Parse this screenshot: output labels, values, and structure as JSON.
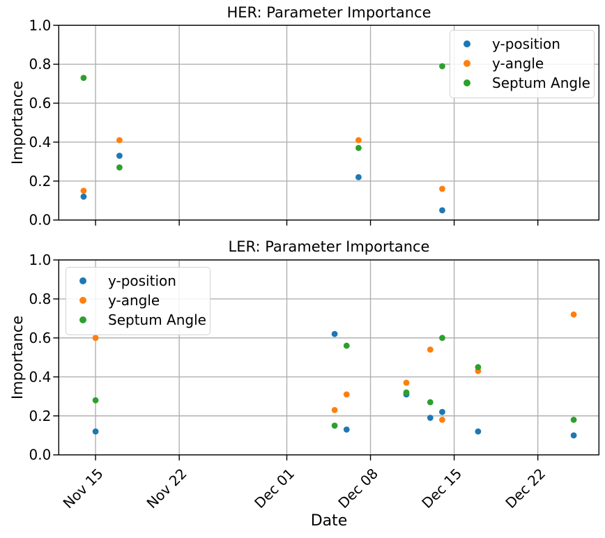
{
  "figure": {
    "xlabel": "Date",
    "background": "#ffffff",
    "text_color": "#000000",
    "grid_color": "#b0b0b0",
    "axis_color": "#000000"
  },
  "legend": {
    "entries": [
      {
        "label": "y-position",
        "color": "#1f77b4",
        "marker": "circle-icon"
      },
      {
        "label": "y-angle",
        "color": "#ff7f0e",
        "marker": "circle-icon"
      },
      {
        "label": "Septum Angle",
        "color": "#2ca02c",
        "marker": "circle-icon"
      }
    ]
  },
  "chart_data": [
    {
      "id": "her",
      "type": "scatter",
      "title": "HER: Parameter Importance",
      "ylabel": "Importance",
      "xlabel": "",
      "ylim": [
        0.0,
        1.0
      ],
      "grid": true,
      "legend_position": "top-right",
      "yticks": [
        {
          "value": 0.0,
          "label": "0.0"
        },
        {
          "value": 0.2,
          "label": "0.2"
        },
        {
          "value": 0.4,
          "label": "0.4"
        },
        {
          "value": 0.6,
          "label": "0.6"
        },
        {
          "value": 0.8,
          "label": "0.8"
        },
        {
          "value": 1.0,
          "label": "1.0"
        }
      ],
      "x_axis": {
        "show_tick_labels": false,
        "domain_days": [
          -3.1,
          42.1
        ],
        "ticks": [
          {
            "day": 0,
            "label": "Nov 15"
          },
          {
            "day": 7,
            "label": "Nov 22"
          },
          {
            "day": 16,
            "label": "Dec 01"
          },
          {
            "day": 23,
            "label": "Dec 08"
          },
          {
            "day": 30,
            "label": "Dec 15"
          },
          {
            "day": 37,
            "label": "Dec 22"
          }
        ]
      },
      "series": [
        {
          "name": "y-position",
          "color": "#1f77b4",
          "points": [
            {
              "date": "Nov 14",
              "day": -1,
              "value": 0.12
            },
            {
              "date": "Nov 17",
              "day": 2,
              "value": 0.33
            },
            {
              "date": "Dec 07",
              "day": 22,
              "value": 0.22
            },
            {
              "date": "Dec 14",
              "day": 29,
              "value": 0.05
            }
          ]
        },
        {
          "name": "y-angle",
          "color": "#ff7f0e",
          "points": [
            {
              "date": "Nov 14",
              "day": -1,
              "value": 0.15
            },
            {
              "date": "Nov 17",
              "day": 2,
              "value": 0.41
            },
            {
              "date": "Dec 07",
              "day": 22,
              "value": 0.41
            },
            {
              "date": "Dec 14",
              "day": 29,
              "value": 0.16
            }
          ]
        },
        {
          "name": "Septum Angle",
          "color": "#2ca02c",
          "points": [
            {
              "date": "Nov 14",
              "day": -1,
              "value": 0.73
            },
            {
              "date": "Nov 17",
              "day": 2,
              "value": 0.27
            },
            {
              "date": "Dec 07",
              "day": 22,
              "value": 0.37
            },
            {
              "date": "Dec 14",
              "day": 29,
              "value": 0.79
            }
          ]
        }
      ]
    },
    {
      "id": "ler",
      "type": "scatter",
      "title": "LER: Parameter Importance",
      "ylabel": "Importance",
      "xlabel": "Date",
      "ylim": [
        0.0,
        1.0
      ],
      "grid": true,
      "legend_position": "top-left",
      "yticks": [
        {
          "value": 0.0,
          "label": "0.0"
        },
        {
          "value": 0.2,
          "label": "0.2"
        },
        {
          "value": 0.4,
          "label": "0.4"
        },
        {
          "value": 0.6,
          "label": "0.6"
        },
        {
          "value": 0.8,
          "label": "0.8"
        },
        {
          "value": 1.0,
          "label": "1.0"
        }
      ],
      "x_axis": {
        "show_tick_labels": true,
        "domain_days": [
          -3.1,
          42.1
        ],
        "ticks": [
          {
            "day": 0,
            "label": "Nov 15"
          },
          {
            "day": 7,
            "label": "Nov 22"
          },
          {
            "day": 16,
            "label": "Dec 01"
          },
          {
            "day": 23,
            "label": "Dec 08"
          },
          {
            "day": 30,
            "label": "Dec 15"
          },
          {
            "day": 37,
            "label": "Dec 22"
          }
        ]
      },
      "series": [
        {
          "name": "y-position",
          "color": "#1f77b4",
          "points": [
            {
              "date": "Nov 15",
              "day": 0,
              "value": 0.12
            },
            {
              "date": "Dec 05",
              "day": 20,
              "value": 0.62
            },
            {
              "date": "Dec 06",
              "day": 21,
              "value": 0.13
            },
            {
              "date": "Dec 11",
              "day": 26,
              "value": 0.31
            },
            {
              "date": "Dec 13",
              "day": 28,
              "value": 0.19
            },
            {
              "date": "Dec 14",
              "day": 29,
              "value": 0.22
            },
            {
              "date": "Dec 17",
              "day": 32,
              "value": 0.12
            },
            {
              "date": "Dec 25",
              "day": 40,
              "value": 0.1
            }
          ]
        },
        {
          "name": "y-angle",
          "color": "#ff7f0e",
          "points": [
            {
              "date": "Nov 15",
              "day": 0,
              "value": 0.6
            },
            {
              "date": "Dec 05",
              "day": 20,
              "value": 0.23
            },
            {
              "date": "Dec 06",
              "day": 21,
              "value": 0.31
            },
            {
              "date": "Dec 11",
              "day": 26,
              "value": 0.37
            },
            {
              "date": "Dec 13",
              "day": 28,
              "value": 0.54
            },
            {
              "date": "Dec 14",
              "day": 29,
              "value": 0.18
            },
            {
              "date": "Dec 17",
              "day": 32,
              "value": 0.43
            },
            {
              "date": "Dec 25",
              "day": 40,
              "value": 0.72
            }
          ]
        },
        {
          "name": "Septum Angle",
          "color": "#2ca02c",
          "points": [
            {
              "date": "Nov 15",
              "day": 0,
              "value": 0.28
            },
            {
              "date": "Dec 05",
              "day": 20,
              "value": 0.15
            },
            {
              "date": "Dec 06",
              "day": 21,
              "value": 0.56
            },
            {
              "date": "Dec 11",
              "day": 26,
              "value": 0.32
            },
            {
              "date": "Dec 13",
              "day": 28,
              "value": 0.27
            },
            {
              "date": "Dec 14",
              "day": 29,
              "value": 0.6
            },
            {
              "date": "Dec 17",
              "day": 32,
              "value": 0.45
            },
            {
              "date": "Dec 25",
              "day": 40,
              "value": 0.18
            }
          ]
        }
      ]
    }
  ]
}
